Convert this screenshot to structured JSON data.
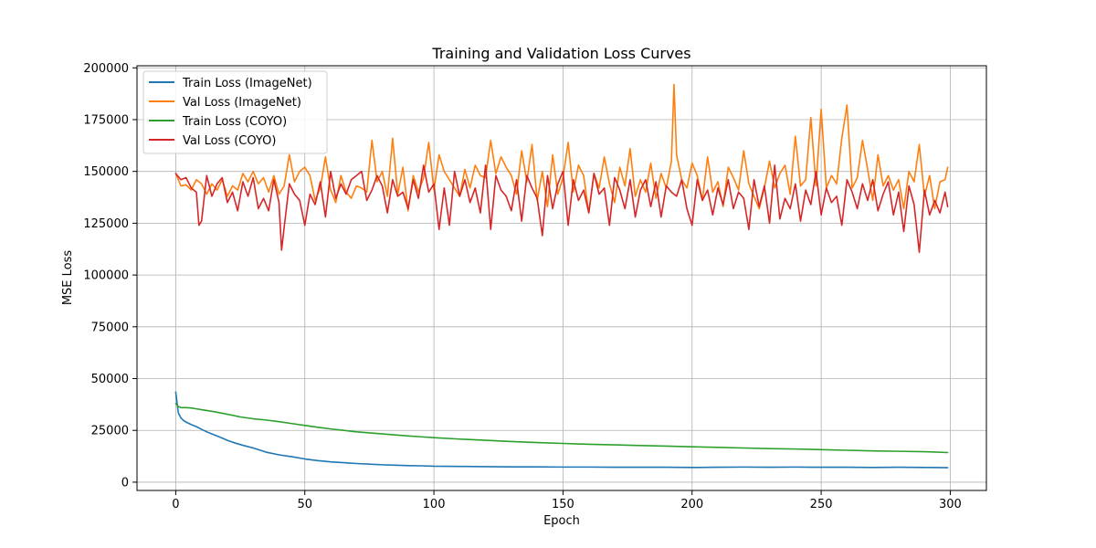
{
  "chart_data": {
    "type": "line",
    "title": "Training and Validation Loss Curves",
    "xlabel": "Epoch",
    "ylabel": "MSE Loss",
    "xlim": [
      -15,
      314
    ],
    "ylim": [
      -4000,
      201000
    ],
    "x_ticks": [
      0,
      50,
      100,
      150,
      200,
      250,
      300
    ],
    "x_tick_labels": [
      "0",
      "50",
      "100",
      "150",
      "200",
      "250",
      "300"
    ],
    "y_ticks": [
      0,
      25000,
      50000,
      75000,
      100000,
      125000,
      150000,
      175000,
      200000
    ],
    "y_tick_labels": [
      "0",
      "25000",
      "50000",
      "75000",
      "100000",
      "125000",
      "150000",
      "175000",
      "200000"
    ],
    "grid": true,
    "legend_position": "top-left",
    "series": [
      {
        "name": "Train Loss (ImageNet)",
        "color": "#1f77b4",
        "x": [
          0,
          1,
          2,
          3,
          4,
          6,
          8,
          10,
          12,
          15,
          18,
          20,
          23,
          26,
          30,
          35,
          40,
          45,
          50,
          55,
          60,
          65,
          70,
          75,
          80,
          85,
          90,
          95,
          100,
          110,
          120,
          130,
          140,
          150,
          160,
          170,
          180,
          190,
          200,
          210,
          220,
          230,
          240,
          250,
          260,
          270,
          280,
          290,
          299
        ],
        "values": [
          43500,
          33500,
          31000,
          29800,
          29000,
          27800,
          26800,
          25500,
          24300,
          22800,
          21300,
          20200,
          18900,
          17800,
          16500,
          14500,
          13200,
          12300,
          11200,
          10400,
          9800,
          9400,
          9000,
          8700,
          8400,
          8200,
          8000,
          7900,
          7700,
          7600,
          7500,
          7400,
          7400,
          7300,
          7300,
          7200,
          7200,
          7200,
          7100,
          7200,
          7300,
          7200,
          7300,
          7200,
          7200,
          7100,
          7200,
          7100,
          7000
        ]
      },
      {
        "name": "Val Loss (ImageNet)",
        "color": "#ff7f0e",
        "x": [
          0,
          2,
          4,
          6,
          8,
          10,
          12,
          14,
          16,
          18,
          20,
          22,
          24,
          26,
          28,
          30,
          32,
          34,
          36,
          38,
          40,
          42,
          44,
          46,
          48,
          50,
          52,
          54,
          56,
          58,
          60,
          62,
          64,
          66,
          68,
          70,
          72,
          74,
          76,
          78,
          80,
          82,
          84,
          86,
          88,
          90,
          92,
          94,
          96,
          98,
          100,
          102,
          104,
          106,
          108,
          110,
          112,
          114,
          116,
          118,
          120,
          122,
          124,
          126,
          128,
          130,
          132,
          134,
          136,
          138,
          140,
          142,
          144,
          146,
          148,
          150,
          152,
          154,
          156,
          158,
          160,
          162,
          164,
          166,
          168,
          170,
          172,
          174,
          176,
          178,
          180,
          182,
          184,
          186,
          188,
          190,
          192,
          193,
          194,
          196,
          198,
          200,
          202,
          204,
          206,
          208,
          210,
          212,
          214,
          216,
          218,
          220,
          222,
          224,
          226,
          228,
          230,
          232,
          234,
          236,
          238,
          240,
          242,
          244,
          246,
          248,
          250,
          252,
          254,
          256,
          258,
          260,
          262,
          264,
          266,
          268,
          270,
          272,
          274,
          276,
          278,
          280,
          282,
          284,
          286,
          288,
          290,
          292,
          294,
          296,
          298,
          299
        ],
        "values": [
          149000,
          143000,
          143500,
          141000,
          146000,
          144000,
          139000,
          144000,
          141000,
          146000,
          138000,
          143000,
          141000,
          149000,
          145000,
          150000,
          144000,
          147000,
          140000,
          148000,
          139000,
          143000,
          158000,
          145000,
          150000,
          152000,
          148000,
          136000,
          142000,
          157000,
          141000,
          135000,
          148000,
          140000,
          137000,
          143000,
          142000,
          140000,
          165000,
          145000,
          150000,
          138000,
          166000,
          139000,
          152000,
          131000,
          148000,
          140000,
          147000,
          164000,
          141000,
          158000,
          150000,
          146000,
          142000,
          138000,
          151000,
          142000,
          153000,
          148000,
          147000,
          165000,
          149000,
          157000,
          152000,
          148000,
          139000,
          160000,
          145000,
          163000,
          136000,
          150000,
          133000,
          158000,
          139000,
          147000,
          164000,
          140000,
          153000,
          148000,
          130000,
          149000,
          142000,
          157000,
          144000,
          135000,
          152000,
          143000,
          161000,
          138000,
          146000,
          140000,
          154000,
          137000,
          149000,
          142000,
          155000,
          192000,
          158000,
          146000,
          142000,
          154000,
          148000,
          136000,
          157000,
          140000,
          145000,
          133000,
          152000,
          147000,
          141000,
          160000,
          144000,
          138000,
          132000,
          142000,
          155000,
          142000,
          149000,
          153000,
          139000,
          167000,
          143000,
          146000,
          176000,
          143000,
          180000,
          142000,
          148000,
          144000,
          166000,
          182000,
          142000,
          147000,
          165000,
          151000,
          136000,
          158000,
          143000,
          148000,
          141000,
          146000,
          132000,
          150000,
          145000,
          163000,
          138000,
          148000,
          132000,
          145000,
          146000,
          152000
        ]
      },
      {
        "name": "Train Loss (COYO)",
        "color": "#2ca02c",
        "x": [
          0,
          1,
          2,
          4,
          6,
          8,
          10,
          12,
          15,
          20,
          25,
          30,
          35,
          40,
          45,
          50,
          55,
          60,
          65,
          70,
          75,
          80,
          85,
          90,
          95,
          100,
          110,
          120,
          130,
          140,
          150,
          160,
          170,
          180,
          190,
          200,
          210,
          220,
          230,
          240,
          250,
          260,
          270,
          280,
          290,
          299
        ],
        "values": [
          38000,
          36500,
          36000,
          36000,
          35800,
          35400,
          35000,
          34600,
          34000,
          32800,
          31500,
          30600,
          30000,
          29200,
          28300,
          27400,
          26500,
          25700,
          25000,
          24300,
          23800,
          23300,
          22800,
          22300,
          21900,
          21500,
          20800,
          20200,
          19600,
          19100,
          18700,
          18300,
          18000,
          17700,
          17400,
          17100,
          16800,
          16500,
          16200,
          16000,
          15700,
          15400,
          15100,
          14900,
          14700,
          14300
        ]
      },
      {
        "name": "Val Loss (COYO)",
        "color": "#d62728",
        "x": [
          0,
          2,
          4,
          6,
          8,
          9,
          10,
          12,
          14,
          16,
          18,
          20,
          22,
          24,
          26,
          28,
          30,
          32,
          34,
          36,
          38,
          40,
          41,
          42,
          44,
          46,
          48,
          50,
          52,
          54,
          56,
          58,
          60,
          62,
          64,
          66,
          68,
          70,
          72,
          74,
          76,
          78,
          80,
          82,
          84,
          86,
          88,
          90,
          92,
          94,
          96,
          98,
          100,
          102,
          104,
          106,
          108,
          110,
          112,
          114,
          116,
          118,
          120,
          122,
          124,
          126,
          128,
          130,
          132,
          134,
          136,
          138,
          140,
          142,
          144,
          146,
          148,
          150,
          152,
          154,
          156,
          158,
          160,
          162,
          164,
          166,
          168,
          170,
          172,
          174,
          176,
          178,
          180,
          182,
          184,
          186,
          188,
          190,
          192,
          194,
          196,
          198,
          200,
          202,
          204,
          206,
          208,
          210,
          212,
          214,
          216,
          218,
          220,
          222,
          224,
          226,
          228,
          230,
          232,
          234,
          236,
          238,
          240,
          242,
          244,
          246,
          248,
          250,
          252,
          254,
          256,
          258,
          260,
          262,
          264,
          266,
          268,
          270,
          272,
          274,
          276,
          278,
          280,
          282,
          284,
          286,
          288,
          290,
          292,
          294,
          296,
          298,
          299
        ],
        "values": [
          149000,
          146000,
          147000,
          142000,
          140000,
          124000,
          126000,
          148000,
          138000,
          144000,
          147000,
          135000,
          140000,
          131000,
          145000,
          138000,
          147000,
          132000,
          137000,
          131000,
          146000,
          135000,
          112000,
          123000,
          144000,
          139000,
          136000,
          124000,
          139000,
          134000,
          145000,
          128000,
          150000,
          137000,
          144000,
          139000,
          146000,
          148000,
          150000,
          136000,
          141000,
          148000,
          143000,
          130000,
          146000,
          138000,
          140000,
          132000,
          146000,
          137000,
          153000,
          140000,
          144000,
          122000,
          142000,
          124000,
          150000,
          138000,
          146000,
          135000,
          142000,
          130000,
          153000,
          122000,
          148000,
          141000,
          138000,
          131000,
          146000,
          126000,
          148000,
          142000,
          137000,
          119000,
          148000,
          132000,
          144000,
          150000,
          124000,
          146000,
          136000,
          141000,
          130000,
          149000,
          139000,
          142000,
          124000,
          147000,
          141000,
          132000,
          146000,
          128000,
          141000,
          146000,
          133000,
          145000,
          128000,
          143000,
          140000,
          138000,
          146000,
          132000,
          124000,
          146000,
          136000,
          141000,
          129000,
          142000,
          134000,
          146000,
          132000,
          140000,
          137000,
          122000,
          146000,
          133000,
          143000,
          125000,
          153000,
          127000,
          137000,
          132000,
          144000,
          126000,
          141000,
          134000,
          150000,
          129000,
          142000,
          135000,
          138000,
          124000,
          146000,
          140000,
          132000,
          144000,
          136000,
          146000,
          131000,
          139000,
          145000,
          129000,
          140000,
          121000,
          143000,
          134000,
          111000,
          141000,
          129000,
          136000,
          130000,
          140000,
          133000
        ]
      }
    ]
  }
}
